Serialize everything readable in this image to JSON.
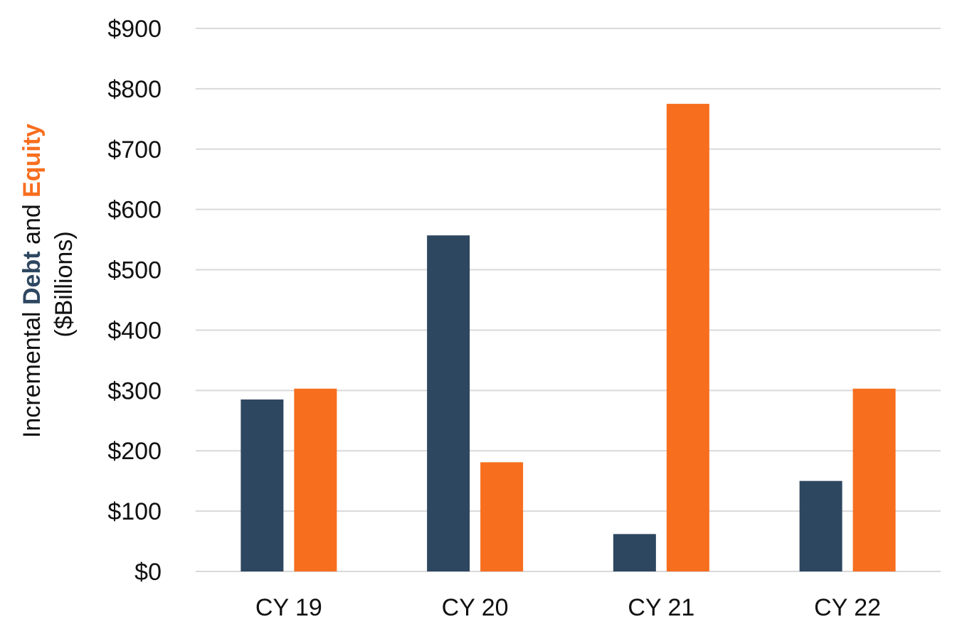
{
  "chart_data": {
    "type": "bar",
    "title": "",
    "xlabel": "",
    "ylabel": {
      "line1_parts": [
        "Incremental ",
        "Debt",
        " and ",
        "Equity"
      ],
      "line2": "($Billions)"
    },
    "categories": [
      "CY 19",
      "CY 20",
      "CY 21",
      "CY 22"
    ],
    "series": [
      {
        "values": [
          285,
          557,
          62,
          150
        ],
        "color": "#2E4760"
      },
      {
        "values": [
          303,
          181,
          775,
          303
        ],
        "color": "#F76E1E"
      }
    ],
    "ylim": [
      0,
      900
    ],
    "yticks": [
      0,
      100,
      200,
      300,
      400,
      500,
      600,
      700,
      800,
      900
    ],
    "ytick_labels": [
      "$0",
      "$100",
      "$200",
      "$300",
      "$400",
      "$500",
      "$600",
      "$700",
      "$800",
      "$900"
    ],
    "grid": true,
    "legend": "none"
  }
}
